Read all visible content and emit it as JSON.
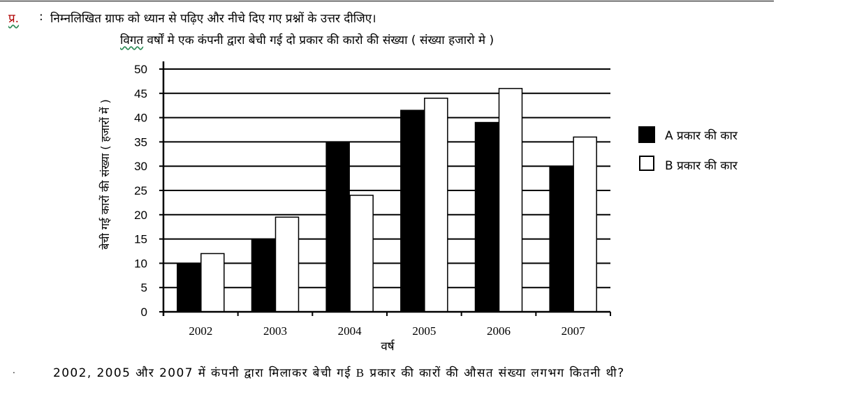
{
  "header": {
    "marker": "प्र.",
    "colon": ":",
    "instruction": "निम्नलिखित ग्राफ को ध्यान से पढ़िए और नीचे दिए गए प्रश्नों के उत्तर दीजिए।"
  },
  "question": {
    "bullet": ".",
    "text_before": "2002, 2005 और 2007 में कंपनी द्वारा मिलाकर बेची गई ",
    "letter": "B",
    "text_after": " प्रकार की कारों की औसत संख्या लगभग कितनी थी?"
  },
  "colors": {
    "series_a": "#000000",
    "series_b": "#ffffff",
    "axis": "#000000",
    "accent_marker": "#b00000",
    "spell_squiggle": "#2e8b57"
  },
  "chart_data": {
    "type": "bar",
    "title_first": "विगत",
    "title_rest": " वर्षों मे एक कंपनी द्वारा बेची गई दो प्रकार की कारो की संख्या ( संख्या हजारो मे )",
    "xlabel": "वर्ष",
    "ylabel": "बेची गई कारों की संख्या ( हजारों में )",
    "categories": [
      "2002",
      "2003",
      "2004",
      "2005",
      "2006",
      "2007"
    ],
    "series": [
      {
        "name": "A प्रकार की कार",
        "values": [
          10,
          15,
          35,
          41.5,
          39,
          30
        ]
      },
      {
        "name": "B प्रकार की कार",
        "values": [
          12,
          19.5,
          24,
          44,
          46,
          36
        ]
      }
    ],
    "yticks": [
      "0",
      "5",
      "10",
      "15",
      "20",
      "25",
      "30",
      "35",
      "40",
      "45",
      "50"
    ],
    "ylim": [
      0,
      50
    ],
    "grid": true,
    "legend_position": "right"
  }
}
